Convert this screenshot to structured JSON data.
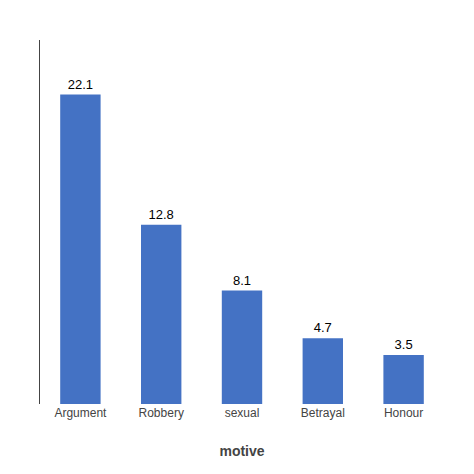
{
  "chart_data": {
    "type": "bar",
    "xlabel": "motive",
    "categories": [
      "Argument",
      "Robbery",
      "sexual",
      "Betrayal",
      "Honour"
    ],
    "values": [
      22.1,
      12.8,
      8.1,
      4.7,
      3.5
    ],
    "color": "#4472C4",
    "ylim": [
      0,
      26
    ],
    "data_labels": true,
    "tick_labels": "x",
    "grid": false
  }
}
